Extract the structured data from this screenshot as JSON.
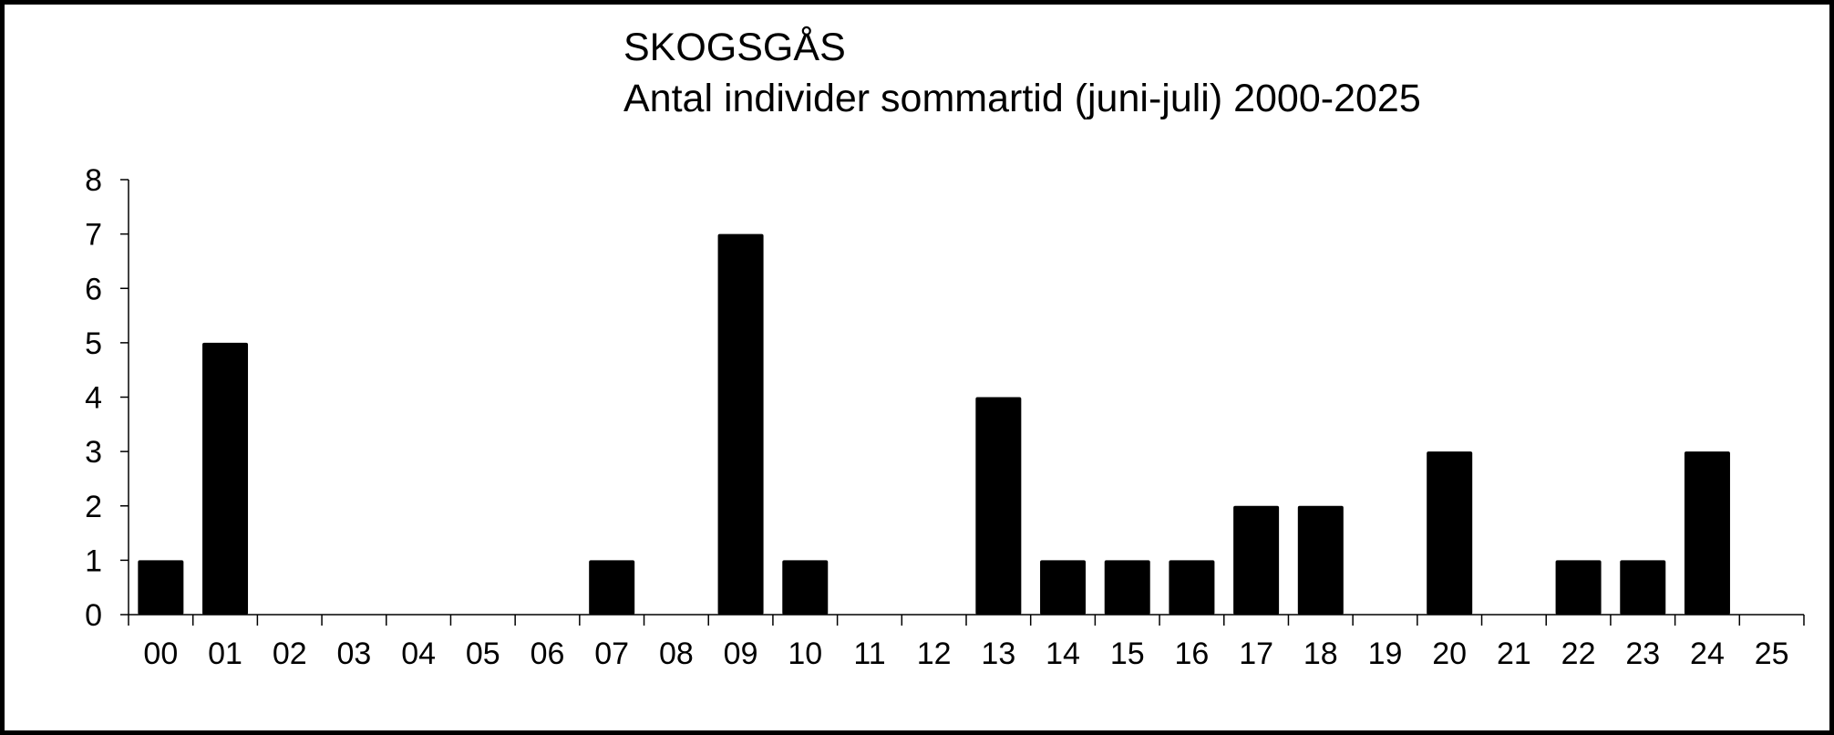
{
  "chart_data": {
    "type": "bar",
    "title": "SKOGSGÅS",
    "subtitle": "Antal individer sommartid (juni-juli) 2000-2025",
    "xlabel": "",
    "ylabel": "",
    "categories": [
      "00",
      "01",
      "02",
      "03",
      "04",
      "05",
      "06",
      "07",
      "08",
      "09",
      "10",
      "11",
      "12",
      "13",
      "14",
      "15",
      "16",
      "17",
      "18",
      "19",
      "20",
      "21",
      "22",
      "23",
      "24",
      "25"
    ],
    "values": [
      1,
      5,
      0,
      0,
      0,
      0,
      0,
      1,
      0,
      7,
      1,
      0,
      0,
      4,
      1,
      1,
      1,
      2,
      2,
      0,
      3,
      0,
      1,
      1,
      3,
      0
    ],
    "ylim": [
      0,
      8
    ],
    "yticks": [
      "0",
      "1",
      "2",
      "3",
      "4",
      "5",
      "6",
      "7",
      "8"
    ],
    "grid": false,
    "legend": "none",
    "bar_color": "#000000"
  }
}
